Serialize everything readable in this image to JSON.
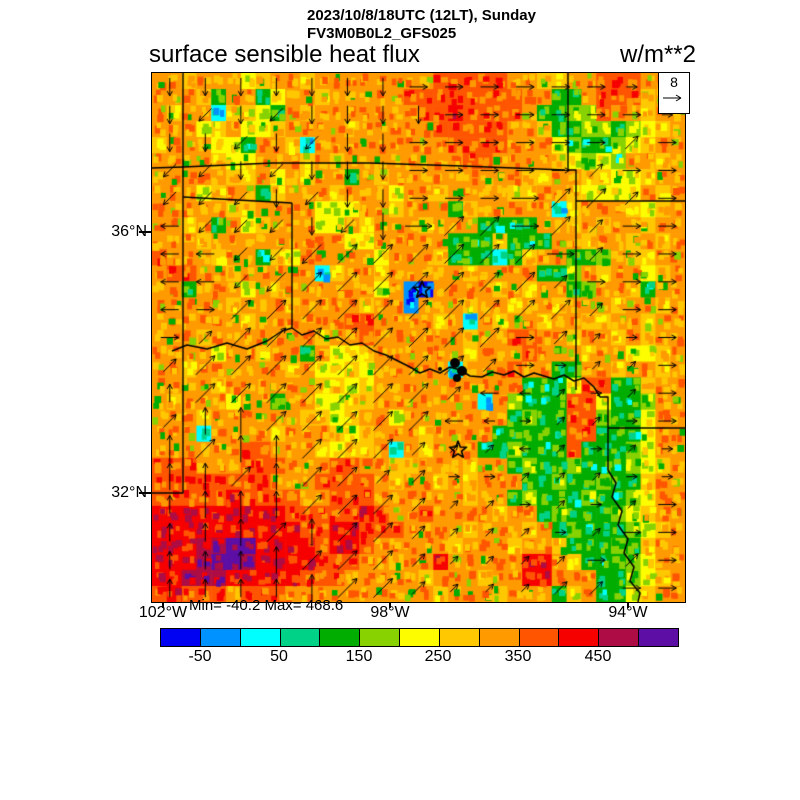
{
  "header": {
    "title_line1": "2023/10/8/18UTC (12LT), Sunday",
    "title_line2": "FV3M0B0L2_GFS025",
    "variable_title": "surface sensible heat flux",
    "units_label": "w/m**2"
  },
  "axes": {
    "lat": [
      "36°N",
      "32°N"
    ],
    "lon": [
      "102°W",
      "98°W",
      "94°W"
    ],
    "minmax": "Min= -40.2 Max= 468.6"
  },
  "wind_reference": {
    "value": "8"
  },
  "colorbar_labels": [
    "-50",
    "50",
    "150",
    "250",
    "350",
    "450"
  ],
  "chart_data": {
    "type": "heatmap",
    "title": "surface sensible heat flux",
    "units": "w/m**2",
    "datetime": "2023/10/8/18UTC (12LT), Sunday",
    "model": "FV3M0B0L2_GFS025",
    "min": -40.2,
    "max": 468.6,
    "lat_ticks": [
      "36°N",
      "32°N"
    ],
    "lon_ticks": [
      "102°W",
      "98°W",
      "94°W"
    ],
    "colorbar": {
      "colors": [
        "#0202f2",
        "#0092ff",
        "#00ffff",
        "#00d287",
        "#00ad00",
        "#87d200",
        "#fdfd00",
        "#ffc801",
        "#ff9a01",
        "#ff5500",
        "#f60000",
        "#ad0d44",
        "#5c0ea5"
      ],
      "tick_values": [
        -50,
        50,
        150,
        250,
        350,
        450
      ],
      "segment_bounds": [
        -100,
        -50,
        0,
        50,
        100,
        150,
        200,
        250,
        300,
        350,
        400,
        450,
        500
      ]
    },
    "wind": {
      "reference_ms": 8,
      "dir_codes": "0=E,1=NE,2=N,3=NW,4=W,5=SW,6=S,7=SE",
      "dirs": [
        "666666600000000",
        "656566660000000",
        "665656600000010",
        "556566600000100",
        "555656600001110",
        "455565601101100",
        "445551111110100",
        "445511111111000",
        "401111111111100",
        "011111111101100",
        "111111111100110",
        "211111111441010",
        "122111114401100",
        "212211111141010",
        "221211110011100",
        "222211111101010",
        "222121111110100",
        "222211111111010",
        "222221111111100"
      ],
      "mags": [
        "222222222222211",
        "222222222222221",
        "222222222222222",
        "222222222222222",
        "222222222233322",
        "222222333333222",
        "222233333333222",
        "222333333332222",
        "223333333333222",
        "223333333322112",
        "233333333221112",
        "233333332211112",
        "233333332111112",
        "333333321111111",
        "333333221111111",
        "233333321111112",
        "223333321111122",
        "222333321111222",
        "222233321112222"
      ]
    },
    "grid": {
      "palette_chars": "0123456789abc",
      "cells": [
        "887888678878888888899999887788999888",
        "888748846887888889999999988448999788",
        "87882776487888888899a999984455988788",
        "888678667888878888899999887445545678",
        "788866488728888888889999888654456788",
        "888876688878788888888998888765658878",
        "888887786878848788888888877887766788",
        "888678847888788868878888778876666878",
        "888887788886668878884788888278887678",
        "887848678886687888788844448878788788",
        "888788888888866888884447444887887878",
        "988878847688888688874442478844587788",
        "899887888882788788888788884458788678",
        "884888687888888681088887878845887488",
        "888887888788887881888788788788878878",
        "888888788888899888878287887887788788",
        "888788888887889888888788998878878788",
        "888868878848667888888788898887886678",
        "887888888786676888882888988448878878",
        "888878888887767888888888844469944788",
        "878886884886677888888828544499644588",
        "888788888877678868888888454499544688",
        "888288887888767888788884444499444688",
        "888888998887677828788844544494445688",
        "999888999888998877888788454454445678",
        "999999998889999878878788844544544788",
        "99999a999988999888888788454445445688",
        "aaaaaaaaa99999a988988887884544456788",
        "aaaaaaaaaa99aa9998888788878454445678",
        "aaabbccaaaa9aa9888887888788744454788",
        "aaabccbaaaa99988788a88888aa874445688",
        "aabbbaaaaa999888887888788aa888445678",
        "9a9998999888888888878887888478446788"
      ]
    },
    "borders": [
      [
        [
          31,
          0
        ],
        [
          31,
          95
        ]
      ],
      [
        [
          0,
          95
        ],
        [
          31,
          94
        ],
        [
          120,
          90
        ],
        [
          218,
          90
        ],
        [
          310,
          93
        ],
        [
          413,
          97
        ]
      ],
      [
        [
          31,
          94
        ],
        [
          31,
          124
        ]
      ],
      [
        [
          31,
          124
        ],
        [
          140,
          130
        ]
      ],
      [
        [
          140,
          130
        ],
        [
          140,
          255
        ]
      ],
      [
        [
          31,
          124
        ],
        [
          31,
          420
        ],
        [
          0,
          420
        ]
      ],
      [
        [
          416,
          0
        ],
        [
          416,
          97
        ],
        [
          424,
          97
        ],
        [
          424,
          317
        ]
      ],
      [
        [
          424,
          128
        ],
        [
          533,
          128
        ]
      ],
      [
        [
          448,
          324
        ],
        [
          456,
          324
        ],
        [
          456,
          397
        ]
      ],
      [
        [
          456,
          355
        ],
        [
          533,
          355
        ]
      ]
    ],
    "rivers": [
      [
        [
          20,
          278
        ],
        [
          35,
          272
        ],
        [
          55,
          276
        ],
        [
          75,
          270
        ],
        [
          95,
          276
        ],
        [
          115,
          268
        ],
        [
          130,
          258
        ],
        [
          140,
          255
        ]
      ],
      [
        [
          140,
          255
        ],
        [
          150,
          262
        ],
        [
          162,
          258
        ],
        [
          174,
          266
        ],
        [
          186,
          264
        ],
        [
          198,
          272
        ],
        [
          210,
          270
        ],
        [
          222,
          278
        ],
        [
          234,
          282
        ],
        [
          246,
          288
        ],
        [
          258,
          294
        ],
        [
          268,
          300
        ],
        [
          278,
          296
        ],
        [
          288,
          300
        ],
        [
          298,
          294
        ],
        [
          308,
          297
        ],
        [
          318,
          303
        ],
        [
          330,
          304
        ],
        [
          340,
          299
        ],
        [
          352,
          302
        ],
        [
          362,
          298
        ],
        [
          372,
          304
        ],
        [
          382,
          300
        ],
        [
          392,
          303
        ],
        [
          402,
          306
        ],
        [
          412,
          302
        ],
        [
          422,
          308
        ],
        [
          432,
          305
        ],
        [
          442,
          314
        ],
        [
          448,
          324
        ]
      ],
      [
        [
          456,
          397
        ],
        [
          464,
          410
        ],
        [
          460,
          424
        ],
        [
          470,
          438
        ],
        [
          466,
          452
        ],
        [
          476,
          466
        ],
        [
          472,
          480
        ],
        [
          482,
          494
        ],
        [
          478,
          508
        ],
        [
          488,
          520
        ],
        [
          486,
          529
        ]
      ]
    ],
    "markers": {
      "stars": [
        [
          270,
          217
        ],
        [
          306,
          377
        ]
      ],
      "lake_blobs": [
        [
          303,
          290,
          5
        ],
        [
          310,
          298,
          5
        ],
        [
          305,
          305,
          4
        ],
        [
          288,
          296,
          2
        ]
      ]
    }
  }
}
